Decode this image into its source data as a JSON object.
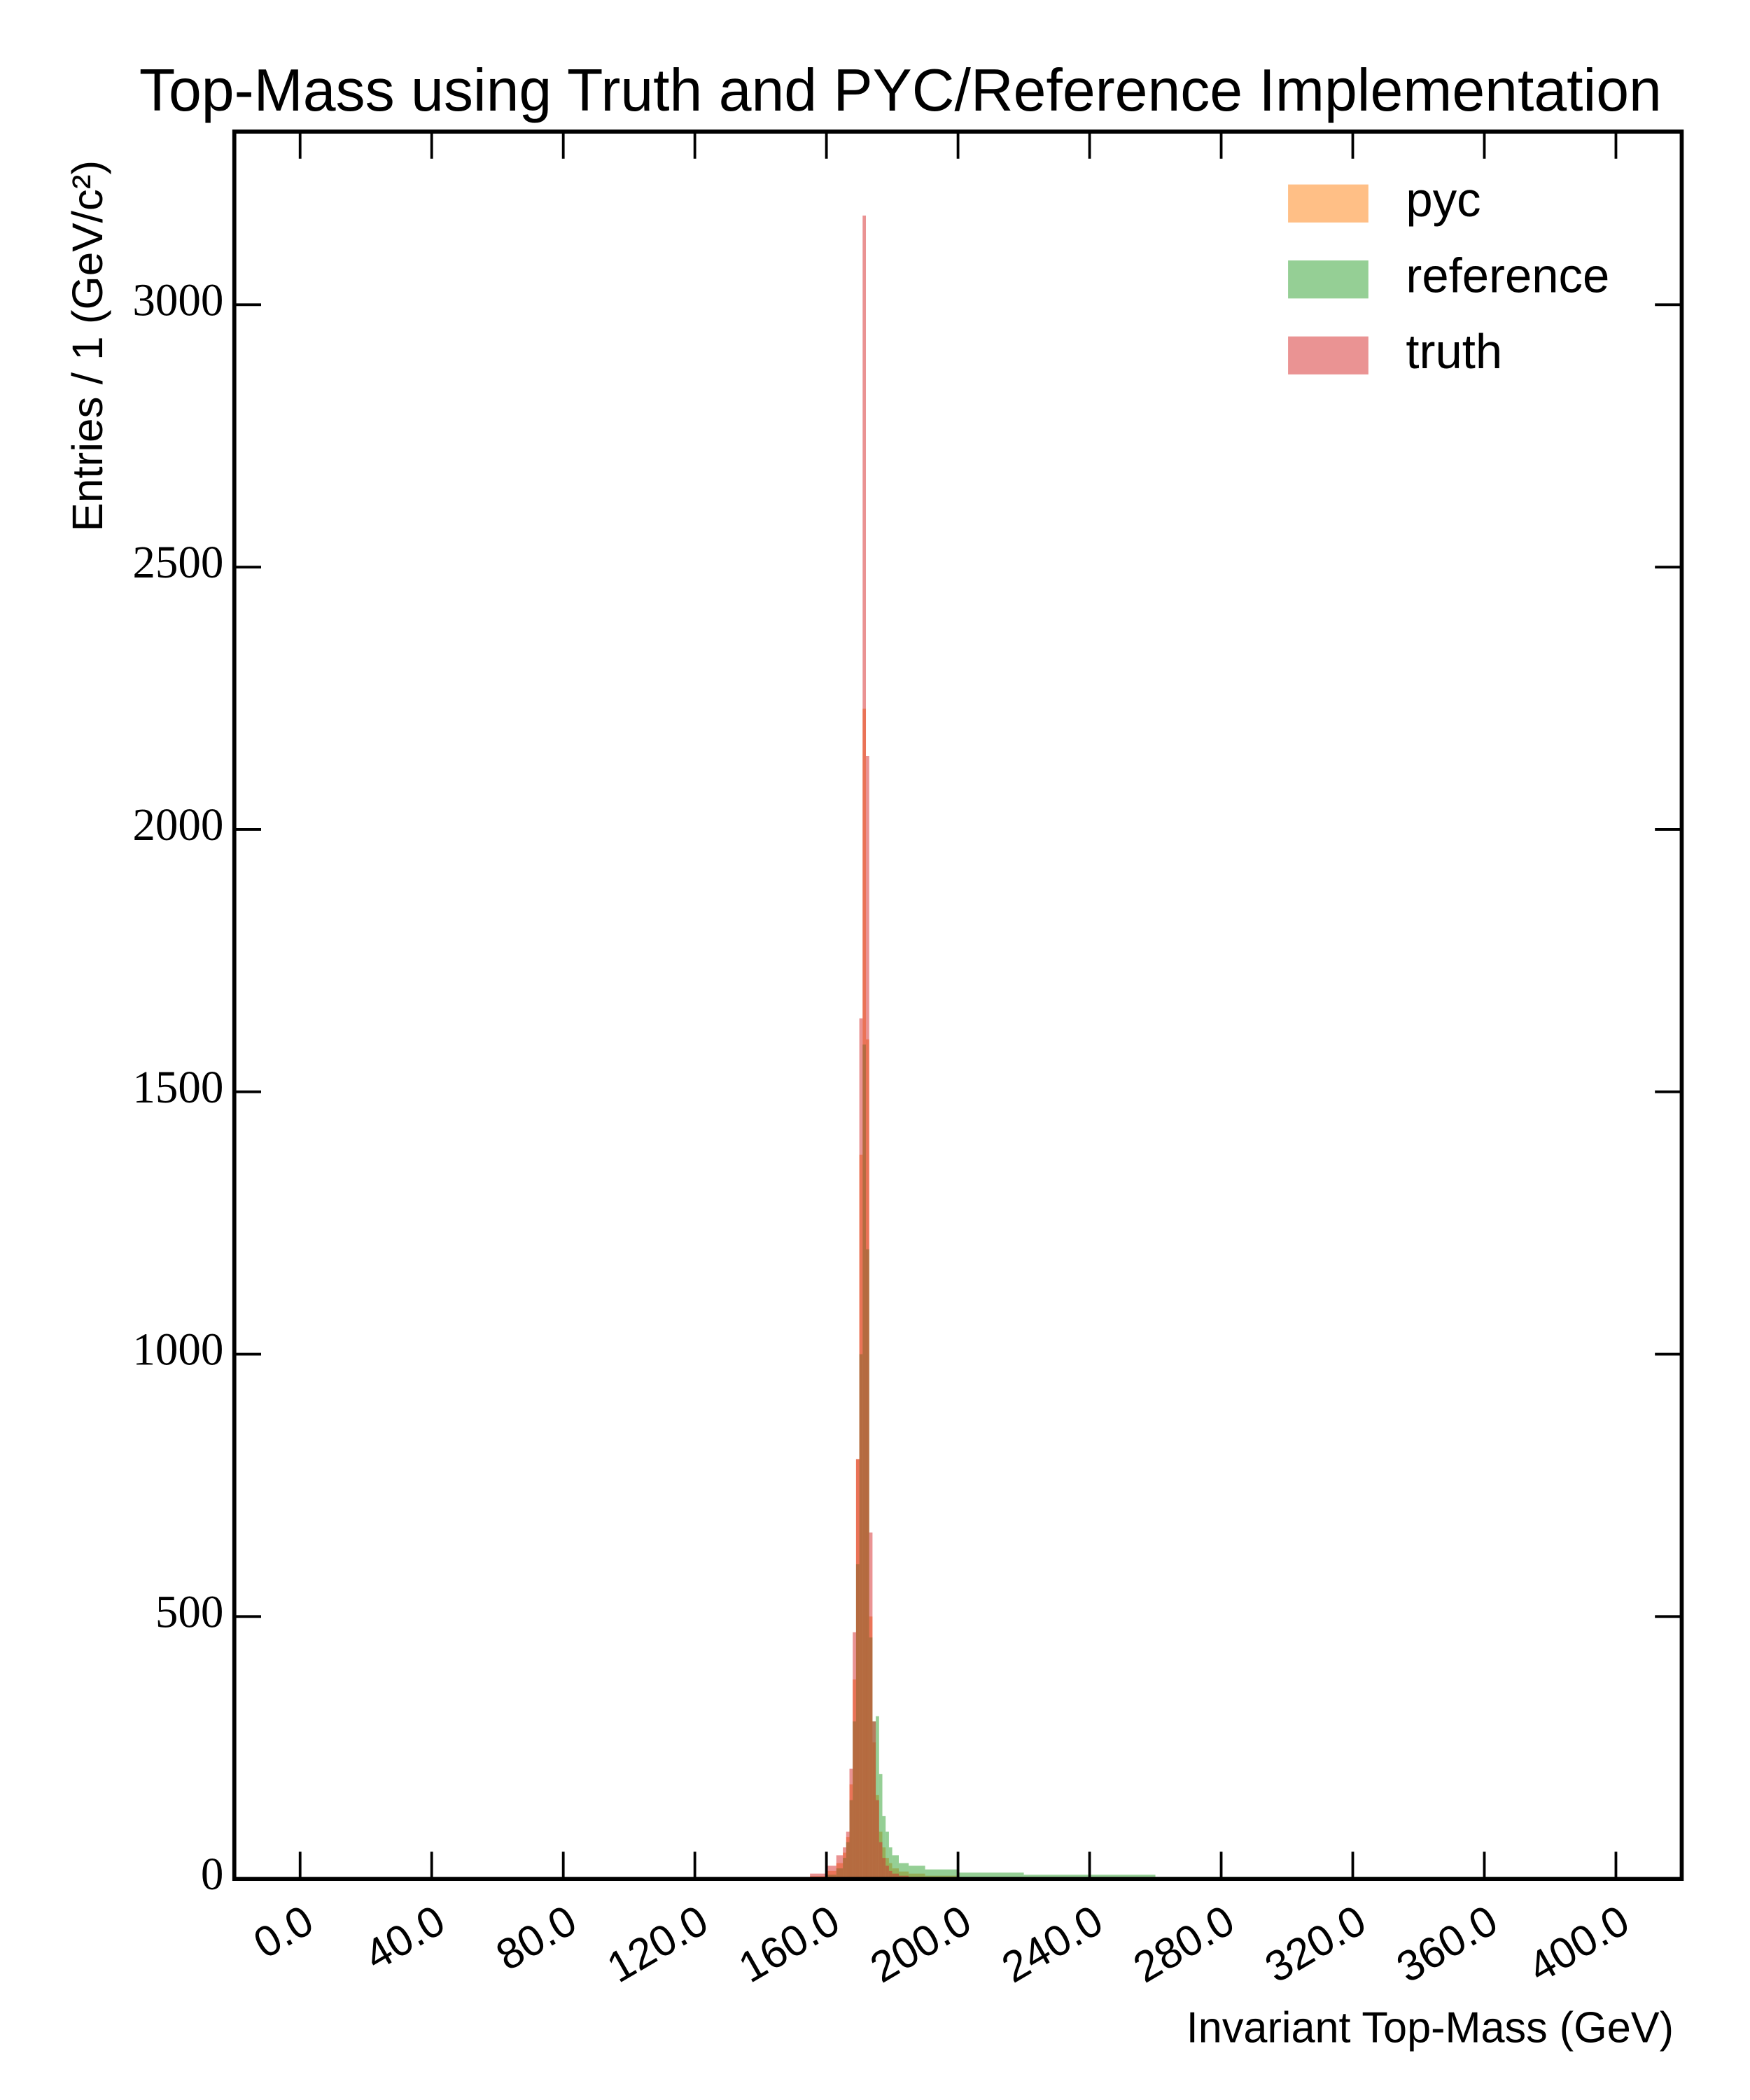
{
  "chart_data": {
    "type": "histogram",
    "title": "Top-Mass using Truth and PYC/Reference Implementation",
    "x_label": "Invariant Top-Mass (GeV)",
    "y_label": "Entries / 1 (GeV/c²)",
    "bins": [
      150,
      155,
      160,
      163,
      165,
      166,
      167,
      168,
      169,
      170,
      171,
      172,
      173,
      174,
      175,
      176,
      177,
      178,
      179,
      180,
      182,
      185,
      190,
      200,
      220,
      260,
      400
    ],
    "series": [
      {
        "name": "pyc",
        "color": "#ff7f0e",
        "values": [
          2,
          5,
          15,
          30,
          50,
          80,
          180,
          380,
          800,
          1380,
          2230,
          1600,
          500,
          260,
          160,
          90,
          60,
          40,
          30,
          20,
          14,
          10,
          6,
          3,
          2,
          1
        ]
      },
      {
        "name": "reference",
        "color": "#2ca02c",
        "values": [
          1,
          3,
          8,
          20,
          40,
          70,
          150,
          300,
          600,
          1000,
          1590,
          1200,
          460,
          300,
          310,
          200,
          120,
          90,
          60,
          45,
          30,
          25,
          18,
          12,
          8,
          4
        ]
      },
      {
        "name": "truth",
        "color": "#d62728",
        "values": [
          3,
          10,
          25,
          45,
          60,
          90,
          210,
          470,
          800,
          1640,
          3170,
          2140,
          660,
          300,
          150,
          70,
          40,
          25,
          15,
          10,
          6,
          4,
          2,
          1,
          0,
          0
        ]
      }
    ],
    "xlim": [
      -20,
      420
    ],
    "ylim": [
      0,
      3330
    ],
    "xticks": [
      {
        "value": 0,
        "label": "0.0"
      },
      {
        "value": 40,
        "label": "40.0"
      },
      {
        "value": 80,
        "label": "80.0"
      },
      {
        "value": 120,
        "label": "120.0"
      },
      {
        "value": 160,
        "label": "160.0"
      },
      {
        "value": 200,
        "label": "200.0"
      },
      {
        "value": 240,
        "label": "240.0"
      },
      {
        "value": 280,
        "label": "280.0"
      },
      {
        "value": 320,
        "label": "320.0"
      },
      {
        "value": 360,
        "label": "360.0"
      },
      {
        "value": 400,
        "label": "400.0"
      }
    ],
    "yticks": [
      0,
      500,
      1000,
      1500,
      2000,
      2500,
      3000
    ],
    "legend": "upper right",
    "opacity": 0.5
  }
}
